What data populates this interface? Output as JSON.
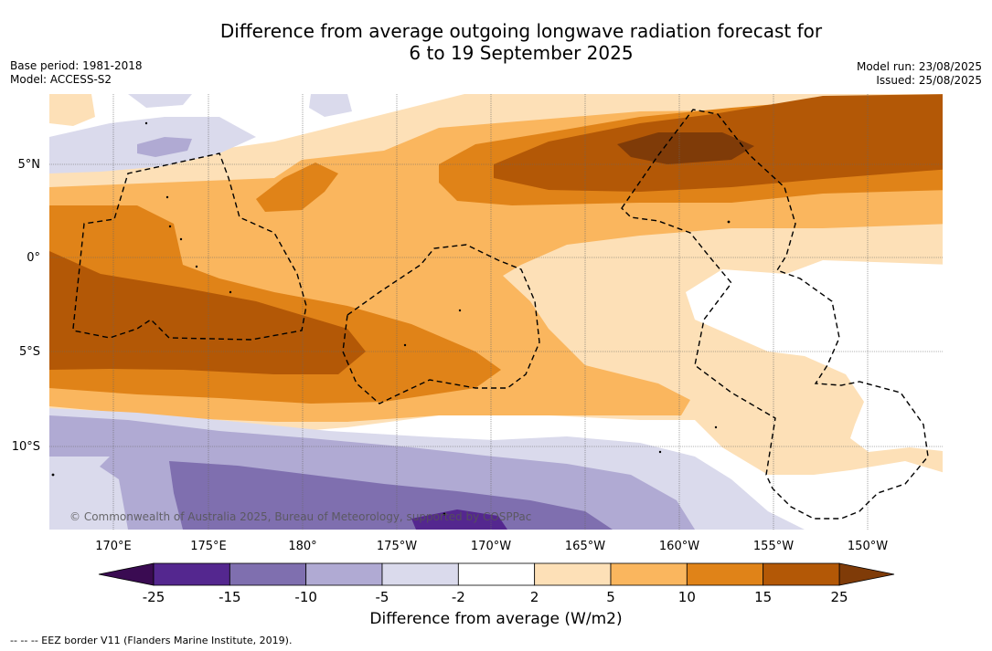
{
  "title": {
    "line1": "Difference from average outgoing longwave radiation forecast for",
    "line2": "6 to 19 September 2025"
  },
  "meta_left": {
    "base_period": "Base period: 1981-2018",
    "model": "Model: ACCESS-S2"
  },
  "meta_right": {
    "model_run": "Model run: 23/08/2025",
    "issued": "Issued: 25/08/2025"
  },
  "map": {
    "longitude_labels": [
      "170°E",
      "175°E",
      "180°",
      "175°W",
      "170°W",
      "165°W",
      "160°W",
      "155°W",
      "150°W"
    ],
    "latitude_labels": [
      "5°N",
      "0°",
      "5°S",
      "10°S"
    ],
    "copyright": "© Commonwealth of Australia 2025, Bureau of Meteorology, supported by COSPPac",
    "layer_colors": {
      "lt_-25": "#3a0b52",
      "-25_-15": "#54278f",
      "-15_-10": "#7f6faf",
      "-10_-5": "#b0aad3",
      "-5_-2": "#dadaec",
      "-2_2": "#ffffff",
      "2_5": "#fde0b7",
      "5_10": "#fab65e",
      "10_15": "#e08318",
      "15_25": "#b35806",
      "gt_25": "#7f3b08"
    }
  },
  "colorbar": {
    "ticks": [
      "-25",
      "-15",
      "-10",
      "-5",
      "-2",
      "2",
      "5",
      "10",
      "15",
      "25"
    ],
    "colors": [
      "#54278f",
      "#7f6faf",
      "#b0aad3",
      "#dadaec",
      "#ffffff",
      "#fde0b7",
      "#fab65e",
      "#e08318",
      "#b35806"
    ],
    "end_low": "#3a0b52",
    "end_high": "#7f3b08",
    "label": "Difference from average (W/m2)"
  },
  "footnote": "--  --  -- EEZ border V11 (Flanders Marine Institute, 2019)."
}
